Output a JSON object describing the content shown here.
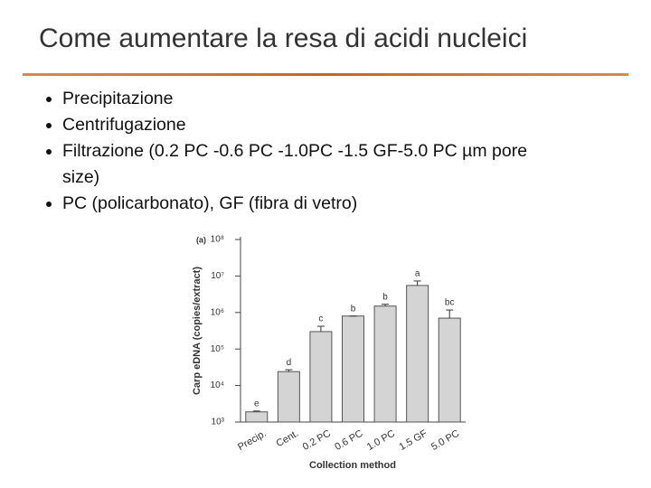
{
  "slide": {
    "title": "Come aumentare la resa di acidi nucleici",
    "bullets": [
      "Precipitazione",
      "Centrifugazione",
      "Filtrazione (0.2 PC -0.6 PC -1.0PC -1.5 GF-5.0 PC µm pore size)",
      "PC (policarbonato), GF (fibra di vetro)"
    ]
  },
  "chart_data": {
    "type": "bar",
    "panel_label": "(a)",
    "x_label": "Collection method",
    "y_label": "Carp eDNA (copies/extract)",
    "categories": [
      "Precip.",
      "Cent.",
      "0.2 PC",
      "0.6 PC",
      "1.0 PC",
      "1.5 GF",
      "5.0 PC"
    ],
    "values": [
      1900,
      24000,
      300000,
      800000,
      1500000,
      5500000,
      700000
    ],
    "errors": [
      100,
      3000,
      120000,
      0,
      180000,
      1800000,
      470000
    ],
    "letters": [
      "e",
      "d",
      "c",
      "b",
      "b",
      "a",
      "bc"
    ],
    "color": "#d4d4d4",
    "log_scale": true,
    "ylim": [
      1000,
      100000000
    ],
    "yticks": [
      {
        "value": 1000,
        "label": "10³"
      },
      {
        "value": 10000,
        "label": "10⁴"
      },
      {
        "value": 100000,
        "label": "10⁵"
      },
      {
        "value": 1000000,
        "label": "10⁶"
      },
      {
        "value": 10000000,
        "label": "10⁷"
      },
      {
        "value": 100000000,
        "label": "10⁸"
      }
    ]
  }
}
